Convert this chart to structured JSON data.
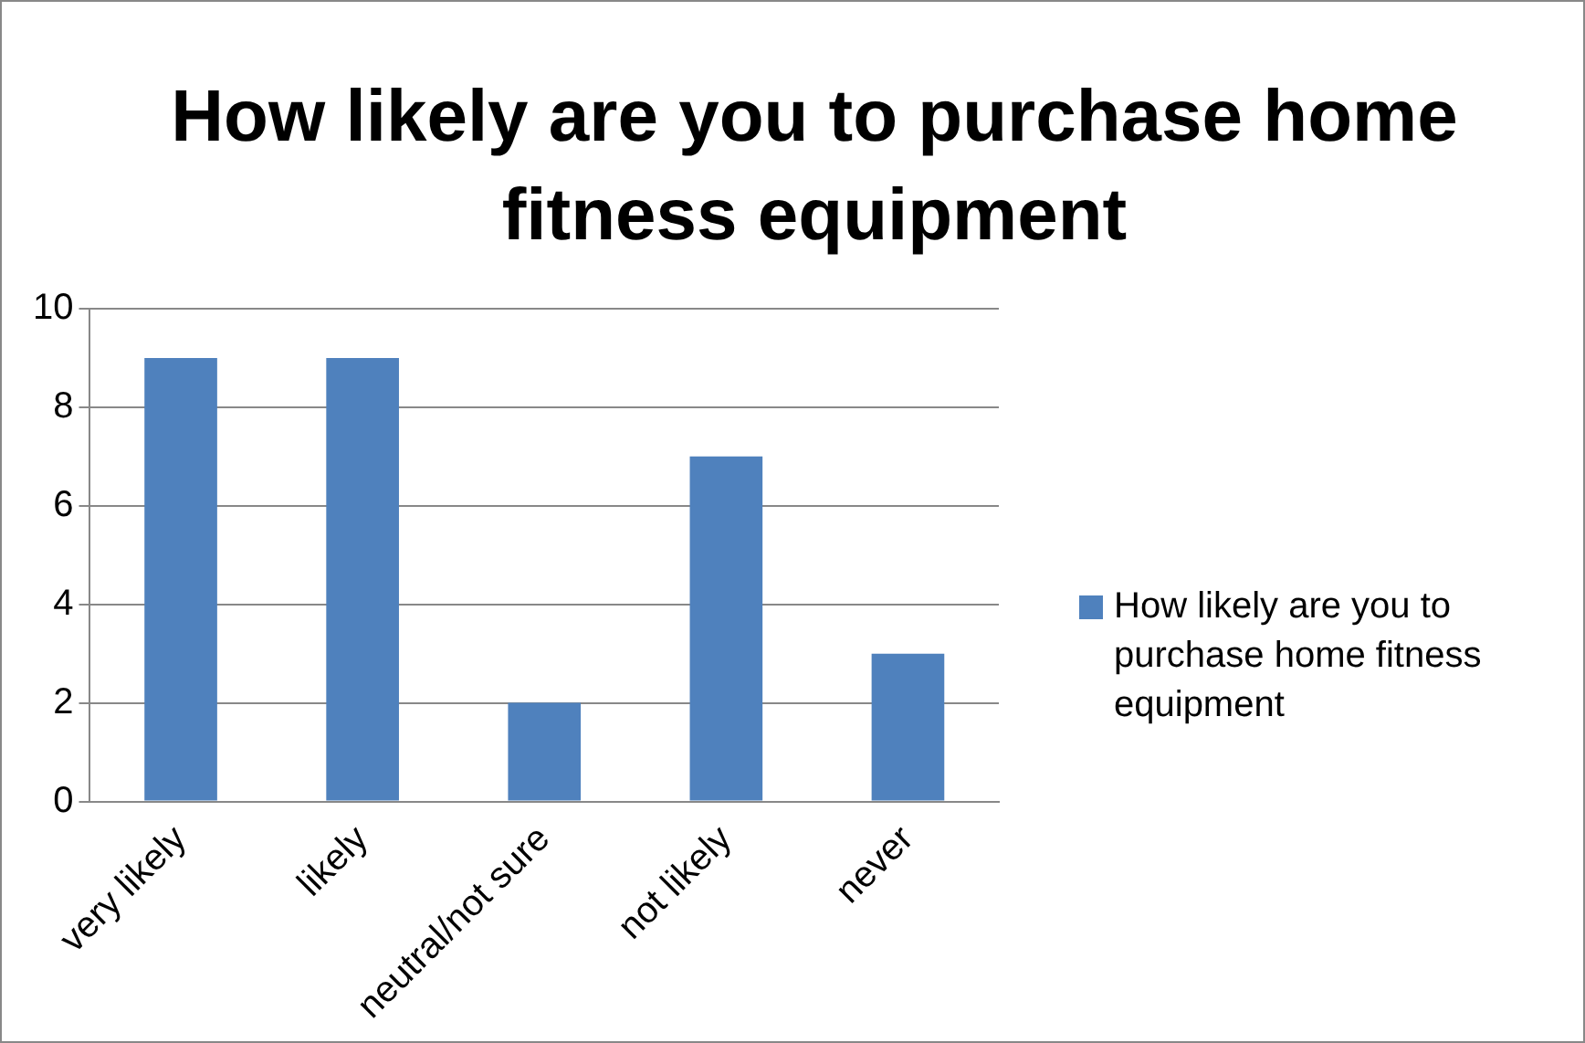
{
  "chart_data": {
    "type": "bar",
    "title": "How likely are you to purchase home fitness equipment",
    "categories": [
      "very likely",
      "likely",
      "neutral/not sure",
      "not likely",
      "never"
    ],
    "series": [
      {
        "name": "How likely are you to purchase home fitness equipment",
        "color": "#4f81bd",
        "values": [
          9,
          9,
          2,
          7,
          3
        ]
      }
    ],
    "ylim": [
      0,
      10
    ],
    "yticks": [
      0,
      2,
      4,
      6,
      8,
      10
    ],
    "grid": "y",
    "legend": "right"
  }
}
